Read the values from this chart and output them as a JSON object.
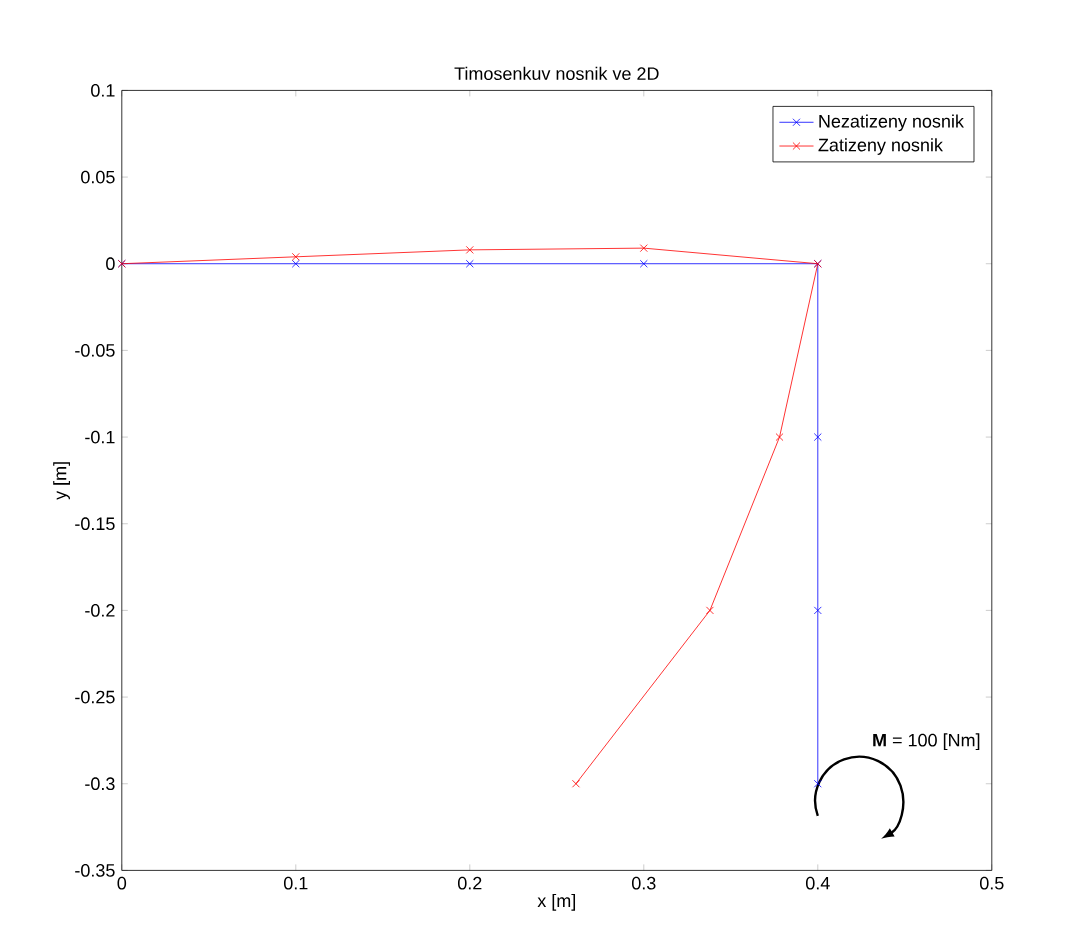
{
  "chart_data": {
    "type": "line",
    "title": "Timosenkuv nosnik ve 2D",
    "xlabel": "x [m]",
    "ylabel": "y [m]",
    "x": [
      0,
      0.1,
      0.2,
      0.3,
      0.4,
      0.4,
      0.4,
      0.4
    ],
    "series": [
      {
        "name": "Nezatizeny nosnik",
        "color": "#0000ff",
        "marker": "cross",
        "values": [
          0,
          0,
          0,
          0,
          0,
          -0.1,
          -0.2,
          -0.3
        ]
      },
      {
        "name": "Zatizeny nosnik",
        "color": "#ff0000",
        "marker": "cross",
        "x": [
          0,
          0.1,
          0.2,
          0.3,
          0.4,
          0.378,
          0.338,
          0.261
        ],
        "values": [
          0,
          0.004,
          0.008,
          0.009,
          0,
          -0.1,
          -0.2,
          -0.3
        ]
      }
    ],
    "xlim": [
      0,
      0.5
    ],
    "ylim": [
      -0.35,
      0.1
    ],
    "xticks": [
      0,
      0.1,
      0.2,
      0.3,
      0.4,
      0.5
    ],
    "yticks": [
      -0.35,
      -0.3,
      -0.25,
      -0.2,
      -0.15,
      -0.1,
      -0.05,
      0,
      0.05,
      0.1
    ],
    "legend": "top right",
    "grid": false,
    "line_style": "solid",
    "annotations": [
      "**M** = 100 [Nm]"
    ]
  }
}
